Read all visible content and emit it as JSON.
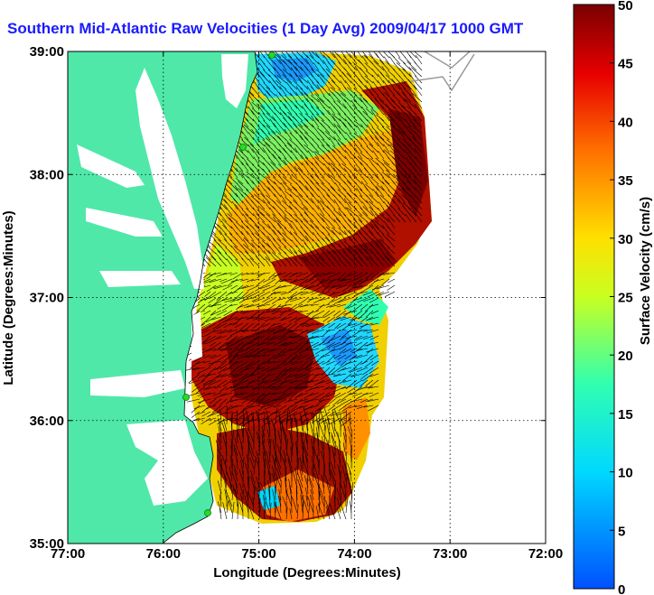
{
  "title": "Southern Mid-Atlantic Raw Velocities (1 Day Avg) 2009/04/17 1000 GMT",
  "x_axis": {
    "label": "Longitude (Degrees:Minutes)",
    "ticks": [
      "77:00",
      "76:00",
      "75:00",
      "74:00",
      "73:00",
      "72:00"
    ]
  },
  "y_axis": {
    "label": "Latitude (Degrees:Minutes)",
    "ticks": [
      "39:00",
      "38:00",
      "37:00",
      "36:00",
      "35:00"
    ]
  },
  "colorbar": {
    "label": "Surface Velocity (cm/s)",
    "ticks": [
      "50",
      "45",
      "40",
      "35",
      "30",
      "25",
      "20",
      "15",
      "10",
      "5",
      "0"
    ],
    "min": 0,
    "max": 50
  },
  "colors": {
    "land": "#4fe8a8",
    "water_gap": "#ffffff",
    "title": "#1a1aff",
    "grid": "#000000",
    "station": "#22dd22"
  }
}
